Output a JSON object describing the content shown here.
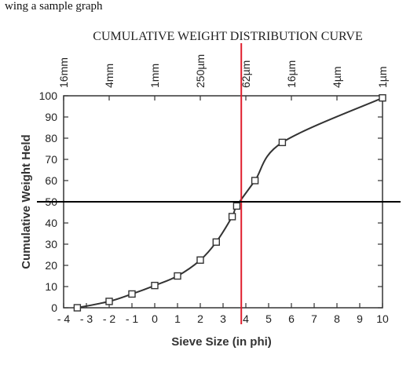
{
  "top_fragment": "wing a sample graph",
  "chart_data": {
    "type": "line",
    "title": "CUMULATIVE WEIGHT DISTRIBUTION CURVE",
    "xlabel": "Sieve Size (in phi)",
    "ylabel": "Cumulative Weight Held",
    "xlim": [
      -4,
      10
    ],
    "ylim": [
      0,
      100
    ],
    "x_ticks": [
      -4,
      -3,
      -2,
      -1,
      0,
      1,
      2,
      3,
      4,
      5,
      6,
      7,
      8,
      9,
      10
    ],
    "x_tick_labels": [
      "- 4",
      "- 3",
      "- 2",
      "- 1",
      "0",
      "1",
      "2",
      "3",
      "4",
      "5",
      "6",
      "7",
      "8",
      "9",
      "10"
    ],
    "y_ticks": [
      0,
      10,
      20,
      30,
      40,
      50,
      60,
      70,
      80,
      90,
      100
    ],
    "y_tick_labels": [
      "0",
      "10",
      "20",
      "30",
      "40",
      "50",
      "60",
      "70",
      "80",
      "90",
      "100"
    ],
    "top_axis": {
      "ticks": [
        -4,
        -2,
        0,
        2,
        4,
        6,
        8,
        10
      ],
      "labels": [
        "16mm",
        "4mm",
        "1mm",
        "250µm",
        "62µm",
        "16µm",
        "4µm",
        "1µm"
      ]
    },
    "grid": false,
    "series": [
      {
        "color": "#333333",
        "marker": "square",
        "points": [
          [
            -3.4,
            0
          ],
          [
            -2.0,
            3
          ],
          [
            -1.0,
            6.5
          ],
          [
            0.0,
            10.5
          ],
          [
            1.0,
            15
          ],
          [
            2.0,
            22.5
          ],
          [
            2.7,
            31
          ],
          [
            3.4,
            43
          ],
          [
            3.6,
            48
          ],
          [
            4.4,
            60
          ],
          [
            5.6,
            78
          ],
          [
            10.0,
            99
          ]
        ]
      }
    ],
    "reference_lines": [
      {
        "orientation": "vertical",
        "x": 3.8,
        "color": "#e0202e"
      },
      {
        "orientation": "horizontal",
        "y": 50,
        "color": "#000000"
      }
    ]
  }
}
